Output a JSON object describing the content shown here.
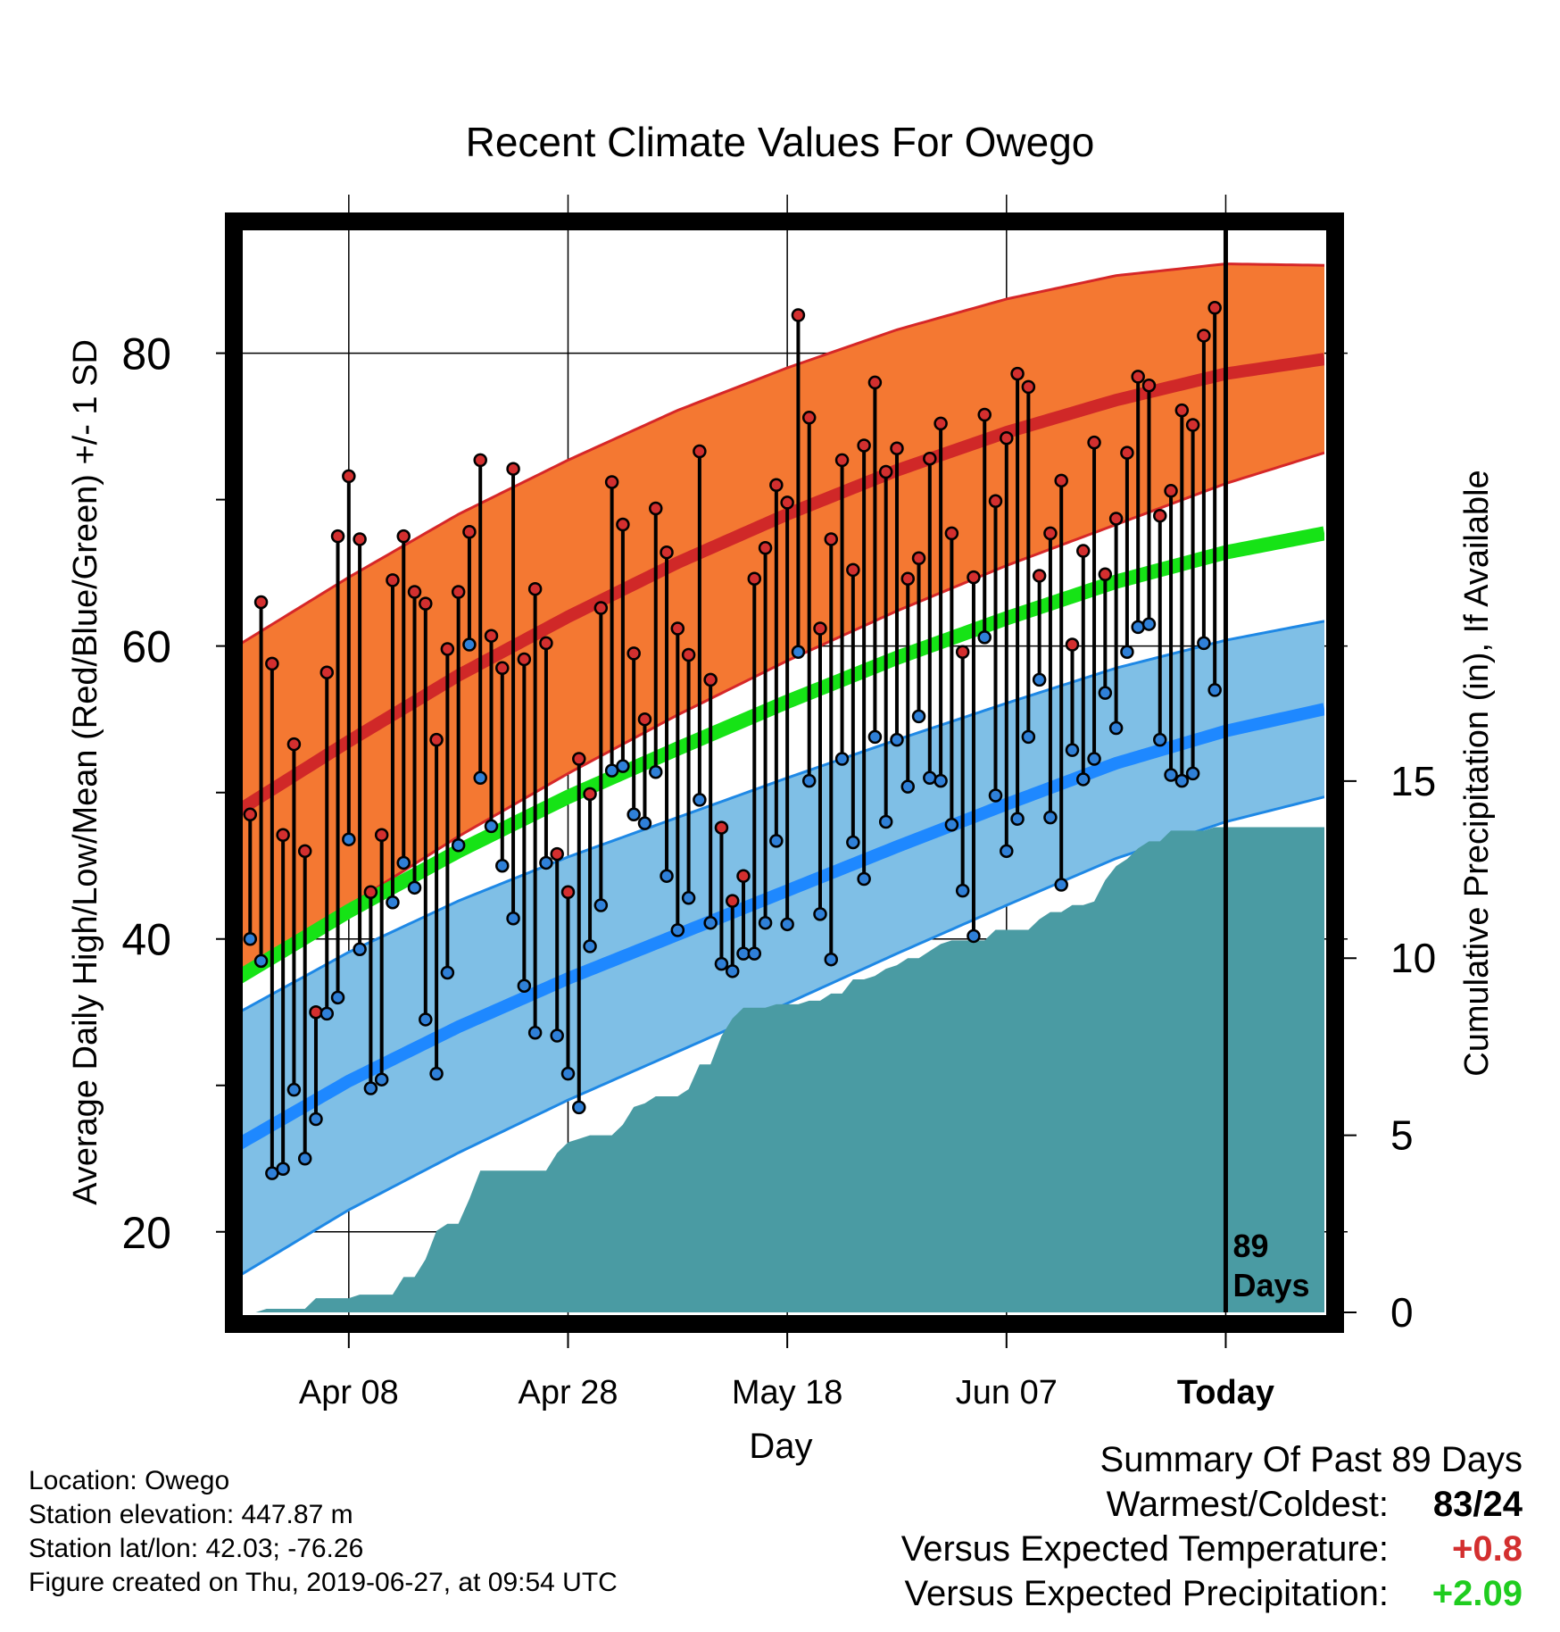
{
  "chart_data": {
    "type": "line",
    "title": "Recent Climate Values For Owego",
    "xlabel": "Day",
    "ylabel": "Average Daily High/Low/Mean (Red/Blue/Green) +/- 1 SD",
    "y2label": "Cumulative Precipitation (in), If Available",
    "x_ticks": [
      {
        "day": 10,
        "label": "Apr 08"
      },
      {
        "day": 30,
        "label": "Apr 28"
      },
      {
        "day": 50,
        "label": "May 18"
      },
      {
        "day": 70,
        "label": "Jun 07"
      },
      {
        "day": 90,
        "label": "Today"
      }
    ],
    "xlim": [
      0,
      99
    ],
    "ylim": [
      14.5,
      89
    ],
    "y_ticks": [
      20,
      40,
      60,
      80
    ],
    "y2lim": [
      0,
      30.8
    ],
    "y2_ticks": [
      0,
      5,
      10,
      15
    ],
    "today_marker": {
      "day": 90,
      "label_line1": "89",
      "label_line2": "Days"
    },
    "colors": {
      "high_band": "#f47832",
      "high_edge": "#d62728",
      "high_mean": "#d02828",
      "low_band": "#7fbfe6",
      "low_edge": "#1e88e5",
      "low_mean": "#1e88ff",
      "mean_line": "#16e316",
      "precip": "#4a9ba3",
      "dot_high": "#d32f2f",
      "dot_low": "#2f80d8"
    },
    "normals": {
      "x": [
        0,
        10,
        20,
        30,
        40,
        50,
        60,
        70,
        80,
        90,
        99
      ],
      "high_mean": [
        48.8,
        53.5,
        58.0,
        62.0,
        65.7,
        69.0,
        72.0,
        74.6,
        76.8,
        78.6,
        79.6
      ],
      "high_sd": [
        11.3,
        11.2,
        11.0,
        10.7,
        10.4,
        10.0,
        9.6,
        9.1,
        8.5,
        7.5,
        6.4
      ],
      "low_mean": [
        26.0,
        30.3,
        34.0,
        37.3,
        40.3,
        43.3,
        46.3,
        49.2,
        52.0,
        54.2,
        55.7
      ],
      "low_sd": [
        9.0,
        8.8,
        8.6,
        8.3,
        8.0,
        7.7,
        7.3,
        6.9,
        6.5,
        6.2,
        6.0
      ],
      "avg_mean": [
        37.4,
        41.9,
        46.0,
        49.7,
        53.0,
        56.2,
        59.2,
        61.9,
        64.4,
        66.4,
        67.7
      ]
    },
    "series": [
      {
        "name": "High",
        "values": [
          48.5,
          63.0,
          58.8,
          47.1,
          53.3,
          46.0,
          35.0,
          58.2,
          67.5,
          71.6,
          67.3,
          43.2,
          47.1,
          64.5,
          67.5,
          63.7,
          62.9,
          53.6,
          59.8,
          63.7,
          67.8,
          72.7,
          60.7,
          58.5,
          72.1,
          59.1,
          63.9,
          60.2,
          45.8,
          43.2,
          52.3,
          49.9,
          62.6,
          71.2,
          68.3,
          59.5,
          55.0,
          69.4,
          66.4,
          61.2,
          59.4,
          73.3,
          57.7,
          47.6,
          42.6,
          44.3,
          64.6,
          66.7,
          71.0,
          69.8,
          82.6,
          75.6,
          61.2,
          67.3,
          72.7,
          65.2,
          73.7,
          78.0,
          71.9,
          73.5,
          64.6,
          66.0,
          72.8,
          75.2,
          67.7,
          59.6,
          64.7,
          75.8,
          69.9,
          74.2,
          78.6,
          77.7,
          64.8,
          67.7,
          71.3,
          60.1,
          66.5,
          73.9,
          64.9,
          68.7,
          73.2,
          78.4,
          77.8,
          68.9,
          70.6,
          76.1,
          75.1,
          81.2,
          83.1
        ]
      },
      {
        "name": "Low",
        "values": [
          40.0,
          38.5,
          24.0,
          24.3,
          29.7,
          25.0,
          27.7,
          34.9,
          36.0,
          46.8,
          39.3,
          29.8,
          30.4,
          42.5,
          45.2,
          43.5,
          34.5,
          30.8,
          37.7,
          46.4,
          60.1,
          51.0,
          47.7,
          45.0,
          41.4,
          36.8,
          33.6,
          45.2,
          33.4,
          30.8,
          28.5,
          39.5,
          42.3,
          51.5,
          51.8,
          48.5,
          47.9,
          51.4,
          44.3,
          40.6,
          42.8,
          49.5,
          41.1,
          38.3,
          37.8,
          39.0,
          39.0,
          41.1,
          46.7,
          41.0,
          59.6,
          50.8,
          41.7,
          38.6,
          52.3,
          46.6,
          44.1,
          53.8,
          48.0,
          53.6,
          50.4,
          55.2,
          51.0,
          50.8,
          47.8,
          43.3,
          40.2,
          60.6,
          49.8,
          46.0,
          48.2,
          53.8,
          57.7,
          48.3,
          43.7,
          52.9,
          50.9,
          52.3,
          56.8,
          54.4,
          59.6,
          61.3,
          61.5,
          53.6,
          51.2,
          50.8,
          51.3,
          60.2,
          57.0
        ]
      },
      {
        "name": "Cumulative Precipitation",
        "x": [
          0,
          1.5,
          2.5,
          6,
          7,
          9,
          10,
          11,
          12,
          13,
          14,
          15,
          16,
          17,
          18,
          19,
          20,
          21,
          22,
          23,
          24,
          25,
          26,
          27,
          28,
          29,
          30,
          31,
          32,
          33,
          34,
          35,
          36,
          37,
          38,
          39,
          40,
          41,
          42,
          43,
          44,
          45,
          46,
          47,
          48,
          49,
          50,
          51,
          52,
          53,
          54,
          55,
          56,
          57,
          58,
          59,
          60,
          61,
          62,
          63,
          64,
          65,
          66,
          67,
          68,
          69,
          70,
          71,
          72,
          73,
          74,
          75,
          76,
          77,
          78,
          79,
          80,
          81,
          82,
          83,
          84,
          85,
          86,
          87,
          88,
          89,
          90,
          99
        ],
        "values": [
          0,
          0,
          0.1,
          0.1,
          0.4,
          0.4,
          0.4,
          0.5,
          0.5,
          0.5,
          0.5,
          1.0,
          1.0,
          1.5,
          2.3,
          2.5,
          2.5,
          3.2,
          4.0,
          4.0,
          4.0,
          4.0,
          4.0,
          4.0,
          4.0,
          4.5,
          4.8,
          4.9,
          5.0,
          5.0,
          5.0,
          5.3,
          5.8,
          5.9,
          6.1,
          6.1,
          6.1,
          6.3,
          7.0,
          7.0,
          7.8,
          8.3,
          8.6,
          8.6,
          8.6,
          8.7,
          8.7,
          8.7,
          8.8,
          8.8,
          9.0,
          9.0,
          9.4,
          9.4,
          9.5,
          9.7,
          9.8,
          10.0,
          10.0,
          10.2,
          10.4,
          10.5,
          10.5,
          10.5,
          10.5,
          10.8,
          10.8,
          10.8,
          10.8,
          11.1,
          11.3,
          11.3,
          11.5,
          11.5,
          11.6,
          12.2,
          12.6,
          12.8,
          13.1,
          13.3,
          13.3,
          13.6,
          13.6,
          13.6,
          13.6,
          13.7,
          13.7,
          13.7
        ]
      }
    ],
    "grid": true,
    "legend": "none"
  },
  "footer": {
    "location": "Location: Owego",
    "elevation": "Station elevation: 447.87 m",
    "latlon": "Station lat/lon: 42.03; -76.26",
    "created": "Figure created on Thu, 2019-06-27, at 09:54 UTC"
  },
  "summary": {
    "title": "Summary Of Past 89 Days",
    "warm_cold_label": "Warmest/Coldest:",
    "warm_cold_value": "83/24",
    "temp_label": "Versus Expected Temperature:",
    "temp_value": "+0.8",
    "temp_color": "#d32f2f",
    "precip_label": "Versus Expected Precipitation:",
    "precip_value": "+2.09",
    "precip_color": "#1fcc1f"
  }
}
